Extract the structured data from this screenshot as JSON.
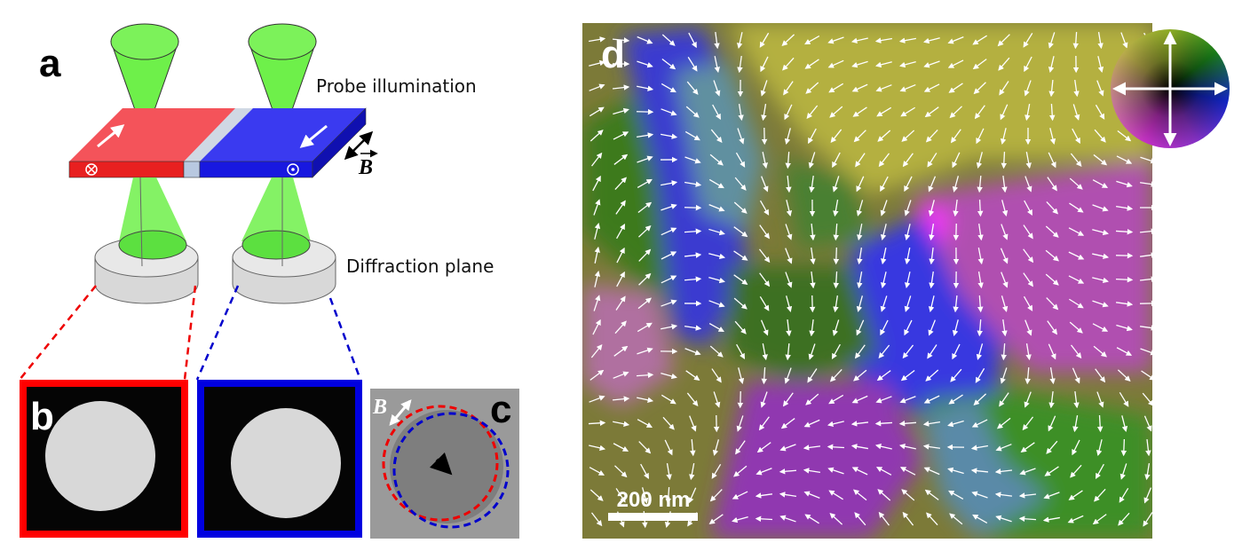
{
  "panels": {
    "a": {
      "label": "a",
      "probe_label": "Probe illumination",
      "diffraction_label": "Diffraction plane",
      "field_label": "B"
    },
    "b": {
      "label": "b"
    },
    "c": {
      "label": "c",
      "field_label": "B"
    },
    "d": {
      "label": "d",
      "scale_bar": "200 nm"
    }
  }
}
